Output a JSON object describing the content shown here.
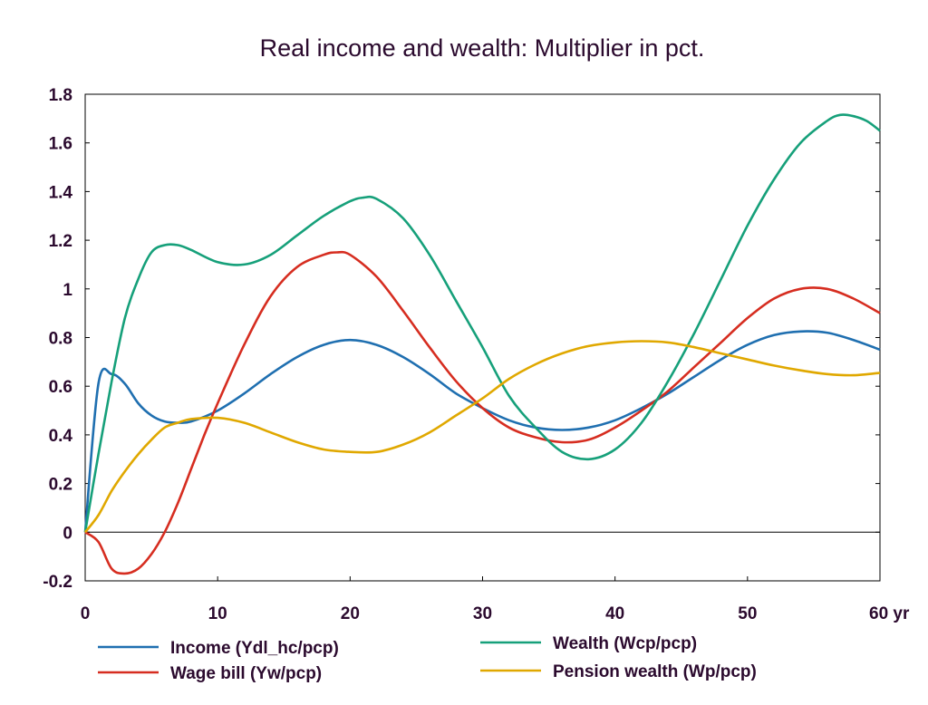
{
  "chart_data": {
    "type": "line",
    "title": "Real income and wealth: Multiplier in pct.",
    "xlabel": "",
    "ylabel": "",
    "xlim": [
      0,
      60
    ],
    "ylim": [
      -0.2,
      1.8
    ],
    "x_ticks": [
      0,
      10,
      20,
      30,
      40,
      50,
      60
    ],
    "x_tick_labels": [
      "0",
      "10",
      "20",
      "30",
      "40",
      "50",
      "60 yr"
    ],
    "y_ticks": [
      -0.2,
      0,
      0.2,
      0.4,
      0.6,
      0.8,
      1,
      1.2,
      1.4,
      1.6,
      1.8
    ],
    "y_tick_labels": [
      "-0.2",
      "0",
      "0.2",
      "0.4",
      "0.6",
      "0.8",
      "1",
      "1.2",
      "1.4",
      "1.6",
      "1.8"
    ],
    "grid": false,
    "zero_line": true,
    "legend": "bottom",
    "series": [
      {
        "name": "Income (Ydl_hc/pcp)",
        "color": "#1f6fb0",
        "points": [
          [
            0,
            0
          ],
          [
            1,
            0.61
          ],
          [
            2,
            0.65
          ],
          [
            3,
            0.61
          ],
          [
            4,
            0.53
          ],
          [
            5,
            0.48
          ],
          [
            6,
            0.455
          ],
          [
            7,
            0.45
          ],
          [
            8,
            0.455
          ],
          [
            10,
            0.5
          ],
          [
            12,
            0.57
          ],
          [
            14,
            0.65
          ],
          [
            16,
            0.72
          ],
          [
            18,
            0.77
          ],
          [
            20,
            0.79
          ],
          [
            22,
            0.77
          ],
          [
            24,
            0.72
          ],
          [
            26,
            0.65
          ],
          [
            28,
            0.57
          ],
          [
            30,
            0.51
          ],
          [
            32,
            0.46
          ],
          [
            34,
            0.43
          ],
          [
            36,
            0.42
          ],
          [
            38,
            0.43
          ],
          [
            40,
            0.46
          ],
          [
            42,
            0.51
          ],
          [
            44,
            0.57
          ],
          [
            46,
            0.64
          ],
          [
            48,
            0.71
          ],
          [
            50,
            0.77
          ],
          [
            52,
            0.81
          ],
          [
            54,
            0.825
          ],
          [
            56,
            0.82
          ],
          [
            58,
            0.79
          ],
          [
            60,
            0.75
          ]
        ]
      },
      {
        "name": "Wage bill (Yw/pcp)",
        "color": "#d62d20",
        "points": [
          [
            0,
            0
          ],
          [
            1,
            -0.04
          ],
          [
            2,
            -0.15
          ],
          [
            3,
            -0.17
          ],
          [
            4,
            -0.15
          ],
          [
            5,
            -0.09
          ],
          [
            6,
            0.0
          ],
          [
            7,
            0.12
          ],
          [
            8,
            0.26
          ],
          [
            9,
            0.4
          ],
          [
            10,
            0.53
          ],
          [
            12,
            0.77
          ],
          [
            14,
            0.97
          ],
          [
            16,
            1.09
          ],
          [
            18,
            1.14
          ],
          [
            19,
            1.15
          ],
          [
            20,
            1.14
          ],
          [
            22,
            1.05
          ],
          [
            24,
            0.91
          ],
          [
            26,
            0.76
          ],
          [
            28,
            0.62
          ],
          [
            30,
            0.51
          ],
          [
            32,
            0.43
          ],
          [
            34,
            0.39
          ],
          [
            36,
            0.37
          ],
          [
            38,
            0.38
          ],
          [
            40,
            0.43
          ],
          [
            42,
            0.5
          ],
          [
            44,
            0.58
          ],
          [
            46,
            0.68
          ],
          [
            48,
            0.78
          ],
          [
            50,
            0.88
          ],
          [
            52,
            0.96
          ],
          [
            54,
            1.0
          ],
          [
            56,
            1.0
          ],
          [
            58,
            0.96
          ],
          [
            60,
            0.9
          ]
        ]
      },
      {
        "name": "Wealth (Wcp/pcp)",
        "color": "#16a07a",
        "points": [
          [
            0,
            0
          ],
          [
            1,
            0.32
          ],
          [
            2,
            0.62
          ],
          [
            3,
            0.88
          ],
          [
            4,
            1.04
          ],
          [
            5,
            1.15
          ],
          [
            6,
            1.18
          ],
          [
            7,
            1.18
          ],
          [
            8,
            1.16
          ],
          [
            10,
            1.11
          ],
          [
            12,
            1.1
          ],
          [
            14,
            1.14
          ],
          [
            16,
            1.22
          ],
          [
            18,
            1.3
          ],
          [
            20,
            1.36
          ],
          [
            21,
            1.375
          ],
          [
            22,
            1.37
          ],
          [
            24,
            1.29
          ],
          [
            26,
            1.14
          ],
          [
            28,
            0.95
          ],
          [
            30,
            0.76
          ],
          [
            32,
            0.56
          ],
          [
            34,
            0.43
          ],
          [
            36,
            0.33
          ],
          [
            38,
            0.3
          ],
          [
            40,
            0.34
          ],
          [
            42,
            0.45
          ],
          [
            44,
            0.62
          ],
          [
            46,
            0.82
          ],
          [
            48,
            1.04
          ],
          [
            50,
            1.26
          ],
          [
            52,
            1.45
          ],
          [
            54,
            1.6
          ],
          [
            56,
            1.69
          ],
          [
            57,
            1.715
          ],
          [
            58,
            1.71
          ],
          [
            59,
            1.69
          ],
          [
            60,
            1.65
          ]
        ]
      },
      {
        "name": "Pension wealth (Wp/pcp)",
        "color": "#e0a800",
        "points": [
          [
            0,
            0
          ],
          [
            1,
            0.07
          ],
          [
            2,
            0.17
          ],
          [
            3,
            0.25
          ],
          [
            4,
            0.32
          ],
          [
            5,
            0.38
          ],
          [
            6,
            0.43
          ],
          [
            7,
            0.45
          ],
          [
            8,
            0.465
          ],
          [
            10,
            0.47
          ],
          [
            12,
            0.45
          ],
          [
            14,
            0.41
          ],
          [
            16,
            0.37
          ],
          [
            18,
            0.34
          ],
          [
            20,
            0.33
          ],
          [
            22,
            0.33
          ],
          [
            24,
            0.36
          ],
          [
            26,
            0.41
          ],
          [
            28,
            0.48
          ],
          [
            30,
            0.55
          ],
          [
            32,
            0.63
          ],
          [
            34,
            0.69
          ],
          [
            36,
            0.735
          ],
          [
            38,
            0.765
          ],
          [
            40,
            0.78
          ],
          [
            42,
            0.785
          ],
          [
            44,
            0.78
          ],
          [
            46,
            0.76
          ],
          [
            48,
            0.735
          ],
          [
            50,
            0.71
          ],
          [
            52,
            0.685
          ],
          [
            54,
            0.665
          ],
          [
            56,
            0.65
          ],
          [
            58,
            0.645
          ],
          [
            60,
            0.655
          ]
        ]
      }
    ]
  }
}
